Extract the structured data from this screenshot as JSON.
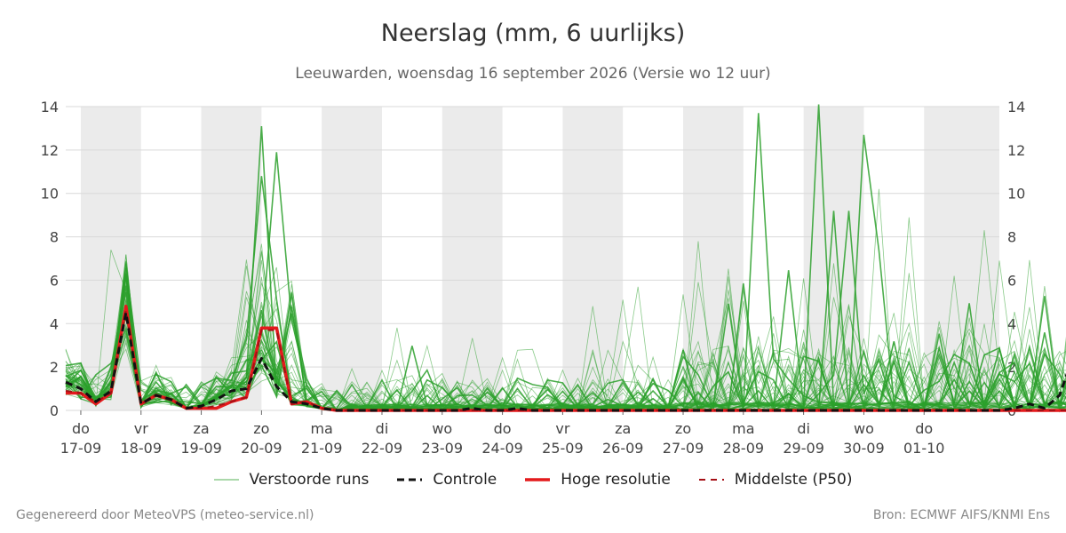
{
  "title": "Neerslag (mm, 6 uurlijks)",
  "subtitle": "Leeuwarden, woensdag 16 september 2026 (Versie wo 12 uur)",
  "footer": {
    "left": "Gegenereerd door MeteoVPS (meteo-service.nl)",
    "right": "Bron: ECMWF AIFS/KNMI Ens"
  },
  "colors": {
    "ensemble": "#2ca02c",
    "control": "#111111",
    "hires": "#e41a1c",
    "median": "#a50f15",
    "weekend_band": "#ebebeb",
    "grid": "#d9d9d9"
  },
  "chart_data": {
    "type": "line",
    "ylim": [
      0,
      14
    ],
    "yticks": [
      0,
      2,
      4,
      6,
      8,
      10,
      12,
      14
    ],
    "xlim": [
      -0.25,
      15.25
    ],
    "x_step": 0.25,
    "x_ticks": [
      {
        "day": "do",
        "date": "17-09"
      },
      {
        "day": "vr",
        "date": "18-09"
      },
      {
        "day": "za",
        "date": "19-09"
      },
      {
        "day": "zo",
        "date": "20-09"
      },
      {
        "day": "ma",
        "date": "21-09"
      },
      {
        "day": "di",
        "date": "22-09"
      },
      {
        "day": "wo",
        "date": "23-09"
      },
      {
        "day": "do",
        "date": "24-09"
      },
      {
        "day": "vr",
        "date": "25-09"
      },
      {
        "day": "za",
        "date": "26-09"
      },
      {
        "day": "zo",
        "date": "27-09"
      },
      {
        "day": "ma",
        "date": "28-09"
      },
      {
        "day": "di",
        "date": "29-09"
      },
      {
        "day": "wo",
        "date": "30-09"
      },
      {
        "day": "do",
        "date": "01-10"
      }
    ],
    "shaded_bands": [
      [
        0,
        1
      ],
      [
        2,
        3
      ],
      [
        4,
        5
      ],
      [
        6,
        7
      ],
      [
        8,
        9
      ],
      [
        10,
        11
      ],
      [
        12,
        13
      ],
      [
        14,
        15.25
      ]
    ],
    "legend": [
      {
        "key": "ensemble",
        "label": "Verstoorde runs",
        "style": "thin"
      },
      {
        "key": "control",
        "label": "Controle",
        "style": "dashed"
      },
      {
        "key": "hires",
        "label": "Hoge resolutie",
        "style": "solid"
      },
      {
        "key": "median",
        "label": "Middelste (P50)",
        "style": "dashed"
      }
    ],
    "series": [
      {
        "key": "control",
        "x_start": -0.25,
        "values": [
          1.3,
          1.0,
          0.4,
          0.9,
          4.5,
          0.3,
          0.7,
          0.5,
          0.1,
          0.2,
          0.5,
          0.9,
          1.0,
          2.4,
          1.1,
          0.4,
          0.3,
          0.1,
          0.0,
          0.0,
          0.0,
          0.0,
          0.0,
          0.0,
          0.0,
          0.0,
          0.0,
          0.1,
          0.0,
          0.0,
          0.1,
          0.0,
          0.0,
          0.0,
          0.0,
          0.0,
          0.0,
          0.0,
          0.0,
          0.0,
          0.0,
          0.0,
          0.0,
          0.0,
          0.0,
          0.0,
          0.0,
          0.0,
          0.0,
          0.0,
          0.0,
          0.0,
          0.0,
          0.0,
          0.0,
          0.0,
          0.0,
          0.0,
          0.0,
          0.0,
          0.0,
          0.0,
          0.0,
          0.1,
          0.3,
          0.1,
          0.7,
          2.7,
          0.7,
          0.1,
          0.0,
          0.0,
          0.0,
          0.1,
          0.0,
          0.0,
          0.0,
          0.0,
          0.0,
          0.0,
          0.0,
          0.0,
          0.0,
          0.0,
          0.0,
          0.0,
          0.0,
          0.0,
          0.0,
          0.0,
          0.0,
          0.0,
          0.0,
          0.0,
          0.0,
          0.0,
          0.0,
          0.0,
          0.0,
          0.0,
          0.0,
          0.0,
          0.0,
          0.0,
          0.0
        ]
      },
      {
        "key": "hires",
        "x_start": -0.25,
        "values": [
          0.8,
          0.8,
          0.3,
          0.8,
          4.8,
          0.3,
          0.7,
          0.5,
          0.1,
          0.1,
          0.1,
          0.4,
          0.6,
          3.8,
          3.8,
          0.3,
          0.4,
          0.1,
          0.0,
          0.0,
          0.0,
          0.0,
          0.0,
          0.0,
          0.0,
          0.0,
          0.0,
          0.0,
          0.0,
          0.0,
          0.0,
          0.0,
          0.0,
          0.0,
          0.0,
          0.0,
          0.0,
          0.0,
          0.0,
          0.0,
          0.0,
          0.0,
          0.0,
          0.0,
          0.0,
          0.0,
          0.0,
          0.0,
          0.0,
          0.0,
          0.0,
          0.0,
          0.0,
          0.0,
          0.0,
          0.0,
          0.0,
          0.0,
          0.0,
          0.0,
          0.0,
          0.0,
          0.0,
          0.0,
          0.0,
          0.0,
          0.0,
          0.0,
          0.0,
          0.0,
          0.0,
          0.0,
          0.0,
          0.0,
          0.0,
          0.0,
          0.0,
          0.0,
          0.0,
          0.0,
          0.0,
          0.0,
          0.0,
          0.0,
          0.0,
          0.0,
          0.0,
          0.0,
          0.0,
          0.0,
          0.0,
          0.0,
          0.0,
          0.0,
          0.0,
          0.0,
          0.0,
          0.0,
          0.0,
          0.0,
          0.0,
          0.0,
          0.0,
          0.0,
          0.0
        ]
      },
      {
        "key": "median",
        "x_start": -0.25,
        "values": [
          0.9,
          0.8,
          0.4,
          0.8,
          4.6,
          0.3,
          0.7,
          0.5,
          0.1,
          0.1,
          0.2,
          0.4,
          0.6,
          3.7,
          3.7,
          0.3,
          0.4,
          0.1,
          0.0,
          0.0,
          0.0,
          0.0,
          0.0,
          0.0,
          0.0,
          0.0,
          0.0,
          0.0,
          0.0,
          0.0,
          0.0,
          0.0,
          0.0,
          0.0,
          0.0,
          0.0,
          0.0,
          0.0,
          0.0,
          0.0,
          0.0,
          0.0,
          0.0,
          0.0,
          0.0,
          0.0,
          0.0,
          0.0,
          0.0,
          0.0,
          0.0,
          0.0,
          0.0,
          0.0,
          0.0,
          0.0,
          0.0,
          0.0,
          0.0,
          0.0,
          0.0,
          0.0,
          0.0,
          0.0,
          0.0,
          0.0,
          0.0,
          0.0,
          0.0,
          0.0,
          0.0,
          0.0,
          0.0,
          0.0,
          0.0,
          0.0,
          0.0,
          0.0,
          0.0,
          0.0,
          0.0,
          0.0,
          0.0,
          0.0,
          0.0,
          0.0,
          0.0,
          0.0,
          0.0,
          0.0,
          0.0,
          0.0,
          0.0,
          0.0,
          0.0,
          0.0,
          0.0,
          0.0,
          0.0,
          0.0,
          0.0,
          0.0,
          0.0,
          0.0,
          0.0
        ]
      }
    ],
    "ensemble_member_count": 50,
    "ensemble_peaks": [
      {
        "x": 3.0,
        "y": 13.1
      },
      {
        "x": 3.25,
        "y": 11.9
      },
      {
        "x": 3.0,
        "y": 10.8
      },
      {
        "x": 11.25,
        "y": 13.7
      },
      {
        "x": 12.25,
        "y": 14.1
      },
      {
        "x": 12.5,
        "y": 9.2
      },
      {
        "x": 12.75,
        "y": 9.2
      },
      {
        "x": 13.0,
        "y": 12.7
      },
      {
        "x": 13.25,
        "y": 10.2
      },
      {
        "x": 13.75,
        "y": 8.9
      },
      {
        "x": 15.0,
        "y": 8.3
      },
      {
        "x": 15.25,
        "y": 6.9
      },
      {
        "x": 10.25,
        "y": 7.8
      },
      {
        "x": 0.5,
        "y": 7.4
      },
      {
        "x": 9.25,
        "y": 5.7
      },
      {
        "x": 9.0,
        "y": 5.1
      },
      {
        "x": 8.5,
        "y": 4.8
      },
      {
        "x": 14.5,
        "y": 6.2
      }
    ]
  }
}
